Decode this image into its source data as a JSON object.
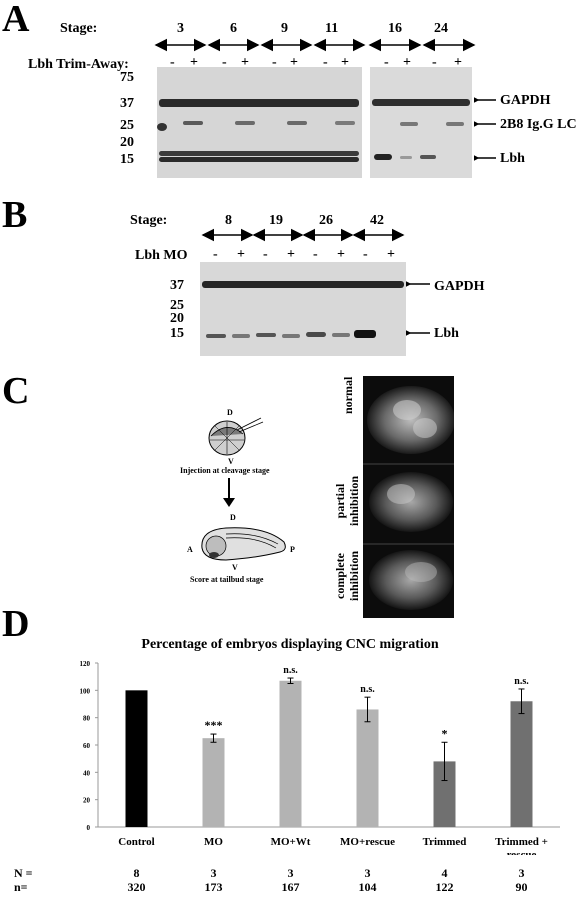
{
  "panelA": {
    "letter": "A",
    "stage_label": "Stage:",
    "stages": [
      "3",
      "6",
      "9",
      "11",
      "16",
      "24"
    ],
    "treatment_label": "Lbh Trim-Away:",
    "lane_signs": [
      "-",
      "+",
      "-",
      "+",
      "-",
      "+",
      "-",
      "+",
      "-",
      "+",
      "-",
      "+"
    ],
    "mw_markers": [
      "75",
      "37",
      "25",
      "20",
      "15"
    ],
    "band_labels": [
      "GAPDH",
      "2B8 Ig.G LC",
      "Lbh"
    ]
  },
  "panelB": {
    "letter": "B",
    "stage_label": "Stage:",
    "stages": [
      "8",
      "19",
      "26",
      "42"
    ],
    "treatment_label": "Lbh MO",
    "lane_signs": [
      "-",
      "+",
      "-",
      "+",
      "-",
      "+",
      "-",
      "+"
    ],
    "mw_markers": [
      "37",
      "25",
      "20",
      "15"
    ],
    "band_labels": [
      "GAPDH",
      "Lbh"
    ]
  },
  "panelC": {
    "letter": "C",
    "top_labels": {
      "dorsal": "D",
      "ventral": "V"
    },
    "injection_caption": "Injection at cleavage stage",
    "tailbud_labels": {
      "dorsal": "D",
      "anterior": "A",
      "posterior": "P",
      "ventral": "V"
    },
    "score_caption": "Score at tailbud stage",
    "image_labels": [
      "normal",
      "partial inhibition",
      "complete inhibition"
    ]
  },
  "panelD": {
    "letter": "D",
    "N_label": "N =",
    "n_label": "n=",
    "N_values": [
      "8",
      "3",
      "3",
      "3",
      "4",
      "3"
    ],
    "n_values": [
      "320",
      "173",
      "167",
      "104",
      "122",
      "90"
    ]
  },
  "chart_data": {
    "type": "bar",
    "title": "Percentage of embryos displaying CNC migration",
    "categories": [
      "Control",
      "MO",
      "MO+Wt",
      "MO+rescue",
      "Trimmed",
      "Trimmed + rescue"
    ],
    "values": [
      100,
      65,
      107,
      86,
      48,
      92
    ],
    "errors": [
      0,
      3,
      2,
      9,
      14,
      9
    ],
    "significance": [
      "",
      "***",
      "n.s.",
      "n.s.",
      "*",
      "n.s."
    ],
    "colors": [
      "#000000",
      "#b3b3b3",
      "#b3b3b3",
      "#b3b3b3",
      "#707070",
      "#707070"
    ],
    "ylim": [
      0,
      120
    ],
    "yticks": [
      0,
      20,
      40,
      60,
      80,
      100,
      120
    ],
    "xlabel": "",
    "ylabel": ""
  }
}
